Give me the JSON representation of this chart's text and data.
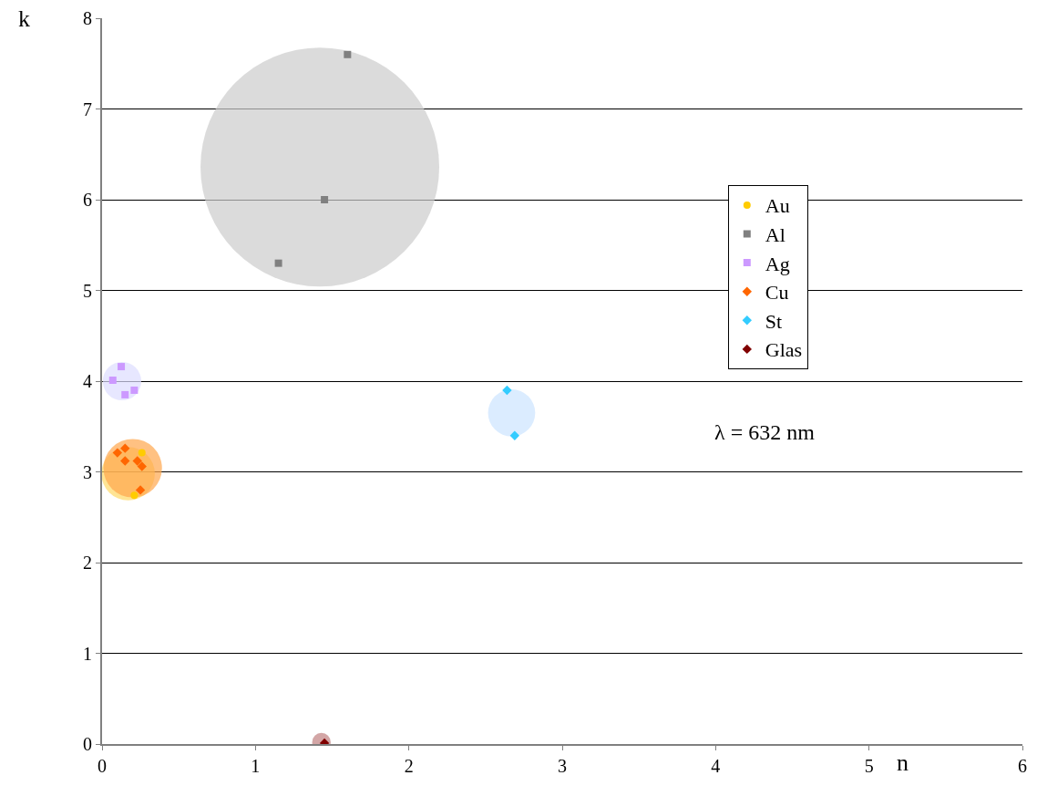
{
  "chart_data": {
    "type": "scatter",
    "xlabel": "n",
    "ylabel": "k",
    "xlim": [
      0,
      6
    ],
    "xticks": [
      0,
      1,
      2,
      3,
      4,
      5,
      6
    ],
    "ylim": [
      0,
      8
    ],
    "yticks": [
      0,
      1,
      2,
      3,
      4,
      5,
      6,
      7,
      8
    ],
    "grid": "y",
    "legend": "right",
    "annotations": [
      "λ = 632 nm"
    ],
    "series": [
      {
        "type": "bubble",
        "color": "#cccccc",
        "x": [
          1.42
        ],
        "values": [
          6.36
        ],
        "sizes": [
          1
        ]
      },
      {
        "type": "bubble",
        "color": "#ddddff",
        "x": [
          0.13
        ],
        "values": [
          4.0
        ],
        "sizes": [
          0.026
        ]
      },
      {
        "type": "bubble",
        "color": "#ffd966",
        "x": [
          0.17
        ],
        "values": [
          2.98
        ],
        "sizes": [
          0.05
        ]
      },
      {
        "type": "bubble",
        "color": "#ffa64d",
        "x": [
          0.2
        ],
        "values": [
          3.04
        ],
        "sizes": [
          0.06
        ]
      },
      {
        "type": "bubble",
        "color": "#cce4ff",
        "x": [
          2.67
        ],
        "values": [
          3.65
        ],
        "sizes": [
          0.039
        ]
      },
      {
        "type": "bubble",
        "color": "#c08080",
        "x": [
          1.43
        ],
        "values": [
          0.02
        ],
        "sizes": [
          0.006
        ]
      },
      {
        "name": "Au",
        "color": "#ffcc00",
        "marker": "circle",
        "x": [
          0.26,
          0.21
        ],
        "values": [
          3.21,
          2.74
        ]
      },
      {
        "name": "Al",
        "color": "#808080",
        "marker": "square",
        "x": [
          1.6,
          1.45,
          1.15
        ],
        "values": [
          7.6,
          6.0,
          5.3
        ]
      },
      {
        "name": "Ag",
        "color": "#cc99ff",
        "marker": "square",
        "x": [
          0.125,
          0.07,
          0.21,
          0.15
        ],
        "values": [
          4.16,
          4.01,
          3.9,
          3.85
        ]
      },
      {
        "name": "Cu",
        "color": "#ff6600",
        "marker": "diamond",
        "x": [
          0.1,
          0.15,
          0.15,
          0.23,
          0.26,
          0.25
        ],
        "values": [
          3.21,
          3.26,
          3.12,
          3.12,
          3.06,
          2.8
        ]
      },
      {
        "name": "St",
        "color": "#33ccff",
        "marker": "diamond",
        "x": [
          2.64,
          2.69
        ],
        "values": [
          3.9,
          3.4
        ]
      },
      {
        "name": "Glas",
        "color": "#800000",
        "marker": "diamond",
        "x": [
          1.45
        ],
        "values": [
          0.01
        ]
      }
    ]
  }
}
